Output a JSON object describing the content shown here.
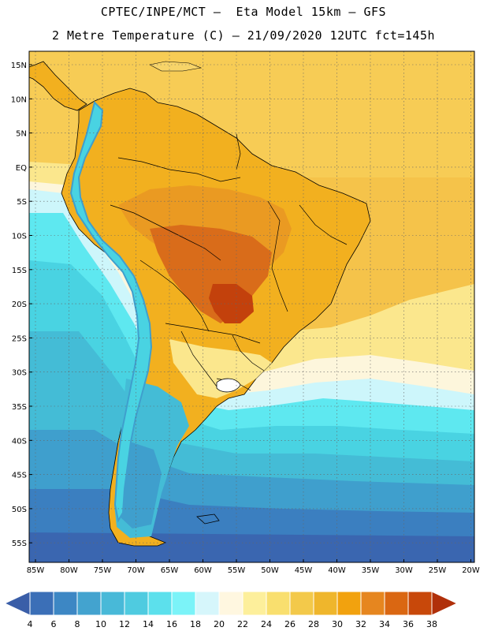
{
  "header": {
    "line1": "CPTEC/INPE/MCT –  Eta Model 15km – GFS",
    "line2": "2 Metre Temperature (C) – 21/09/2020 12UTC fct=145h"
  },
  "map": {
    "lat_labels": [
      "15N",
      "10N",
      "5N",
      "EQ",
      "5S",
      "10S",
      "15S",
      "20S",
      "25S",
      "30S",
      "35S",
      "40S",
      "45S",
      "50S",
      "55S"
    ],
    "lon_labels": [
      "85W",
      "80W",
      "75W",
      "70W",
      "65W",
      "60W",
      "55W",
      "50W",
      "45W",
      "40W",
      "35W",
      "30W",
      "25W",
      "20W"
    ],
    "colors": {
      "very_hot": "#c3410c",
      "hot": "#d96c1a",
      "warm_orange": "#ea9a22",
      "orange": "#f2b01f",
      "gold": "#f5c34a",
      "light_gold": "#f7d469",
      "pale_yellow": "#fbe78d",
      "cream": "#fdf6dc",
      "pale_cyan": "#cdf6fb",
      "cyan": "#5ee8f0",
      "teal": "#49d3e2",
      "sea_blue": "#44bcd6",
      "mid_blue": "#3f9fcd",
      "dark_blue": "#3b7fc0",
      "deep_blue": "#3a66b0"
    }
  },
  "colorbar": {
    "values": [
      "4",
      "6",
      "8",
      "10",
      "12",
      "14",
      "16",
      "18",
      "20",
      "22",
      "24",
      "26",
      "28",
      "30",
      "32",
      "34",
      "36",
      "38"
    ],
    "colors": [
      "#3a5ea8",
      "#3b6fb7",
      "#3d87c4",
      "#43a3cf",
      "#48b9d8",
      "#4fcbe0",
      "#5ce0ec",
      "#7bf3f8",
      "#d6f6fb",
      "#fff7e0",
      "#fdef9b",
      "#f9df6e",
      "#f3c94a",
      "#efb62c",
      "#f2a20e",
      "#e6861f",
      "#da6712",
      "#c8480a",
      "#b0300a"
    ]
  }
}
